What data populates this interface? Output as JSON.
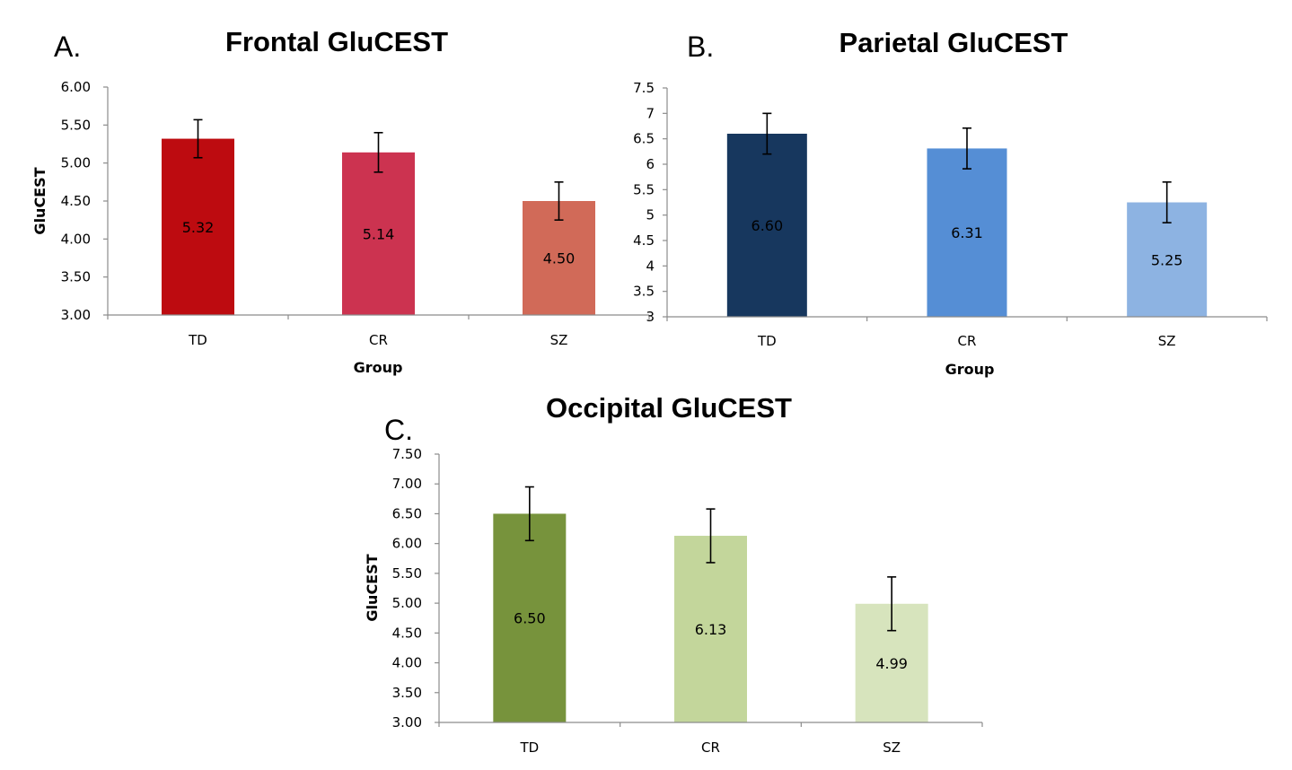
{
  "chart_data": [
    {
      "type": "bar",
      "panel": "A.",
      "title": "Frontal GluCEST",
      "xlabel": "Group",
      "ylabel": "GluCEST",
      "categories": [
        "TD",
        "CR",
        "SZ"
      ],
      "values": [
        5.32,
        5.14,
        4.5
      ],
      "value_labels": [
        "5.32",
        "5.14",
        "4.50"
      ],
      "error": [
        0.25,
        0.26,
        0.25
      ],
      "colors": [
        "#bd0b10",
        "#cc3350",
        "#d16a58"
      ],
      "ylim": [
        3.0,
        6.0
      ],
      "yticks": [
        3.0,
        3.5,
        4.0,
        4.5,
        5.0,
        5.5,
        6.0
      ],
      "ytick_labels": [
        "3.00",
        "3.50",
        "4.00",
        "4.50",
        "5.00",
        "5.50",
        "6.00"
      ],
      "grid": false,
      "legend": "none"
    },
    {
      "type": "bar",
      "panel": "B.",
      "title": "Parietal GluCEST",
      "xlabel": "Group",
      "ylabel": "",
      "categories": [
        "TD",
        "CR",
        "SZ"
      ],
      "values": [
        6.6,
        6.31,
        5.25
      ],
      "value_labels": [
        "6.60",
        "6.31",
        "5.25"
      ],
      "error": [
        0.4,
        0.4,
        0.4
      ],
      "colors": [
        "#17375e",
        "#558ed5",
        "#8db3e2"
      ],
      "ylim": [
        3,
        7.5
      ],
      "yticks": [
        3,
        3.5,
        4,
        4.5,
        5,
        5.5,
        6,
        6.5,
        7,
        7.5
      ],
      "ytick_labels": [
        "3",
        "3.5",
        "4",
        "4.5",
        "5",
        "5.5",
        "6",
        "6.5",
        "7",
        "7.5"
      ],
      "grid": false,
      "legend": "none"
    },
    {
      "type": "bar",
      "panel": "C.",
      "title": "Occipital GluCEST",
      "xlabel": "",
      "ylabel": "GluCEST",
      "categories": [
        "TD",
        "CR",
        "SZ"
      ],
      "values": [
        6.5,
        6.13,
        4.99
      ],
      "value_labels": [
        "6.50",
        "6.13",
        "4.99"
      ],
      "error": [
        0.45,
        0.45,
        0.45
      ],
      "colors": [
        "#77933c",
        "#c3d69b",
        "#d7e4bd"
      ],
      "ylim": [
        3.0,
        7.5
      ],
      "yticks": [
        3.0,
        3.5,
        4.0,
        4.5,
        5.0,
        5.5,
        6.0,
        6.5,
        7.0,
        7.5
      ],
      "ytick_labels": [
        "3.00",
        "3.50",
        "4.00",
        "4.50",
        "5.00",
        "5.50",
        "6.00",
        "6.50",
        "7.00",
        "7.50"
      ],
      "grid": false,
      "legend": "none"
    }
  ]
}
